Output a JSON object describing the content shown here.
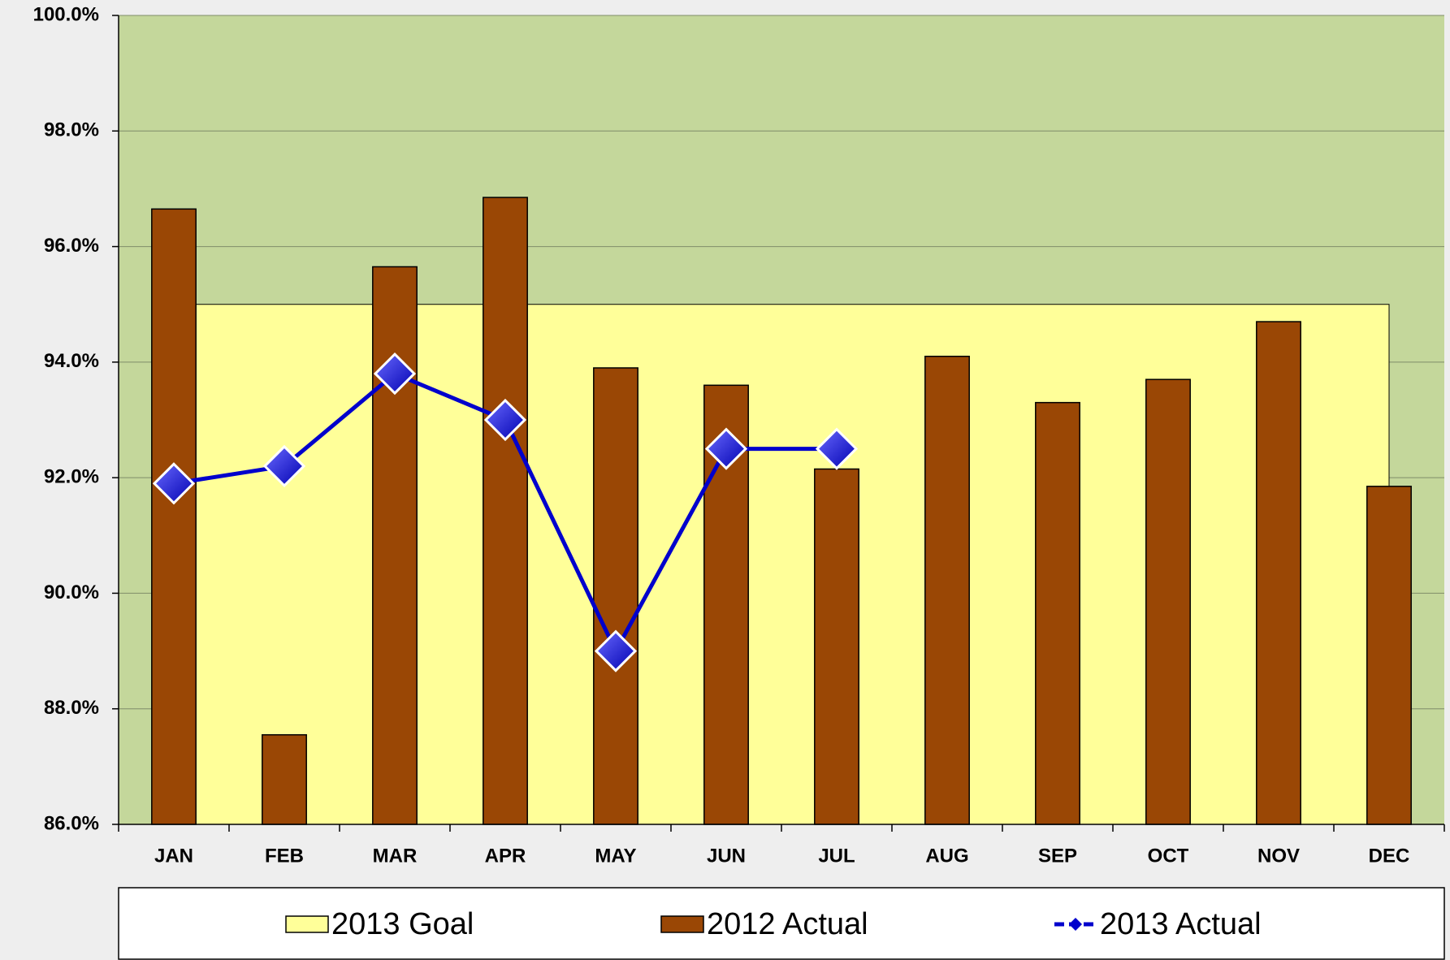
{
  "chart_data": {
    "type": "combo",
    "categories": [
      "JAN",
      "FEB",
      "MAR",
      "APR",
      "MAY",
      "JUN",
      "JUL",
      "AUG",
      "SEP",
      "OCT",
      "NOV",
      "DEC"
    ],
    "series": [
      {
        "name": "2013 Goal",
        "type": "area",
        "color": "#ffff99",
        "values": [
          95,
          95,
          95,
          95,
          95,
          95,
          95,
          95,
          95,
          95,
          95,
          95
        ]
      },
      {
        "name": "2012 Actual",
        "type": "bar",
        "color": "#9a4705",
        "values": [
          96.65,
          87.55,
          95.65,
          96.85,
          93.9,
          93.6,
          92.15,
          94.1,
          93.3,
          93.7,
          94.7,
          91.85
        ]
      },
      {
        "name": "2013 Actual",
        "type": "line",
        "color": "#0000cc",
        "values": [
          91.9,
          92.2,
          93.8,
          93.0,
          89.0,
          92.5,
          92.5,
          null,
          null,
          null,
          null,
          null
        ]
      }
    ],
    "ylim": [
      86,
      100
    ],
    "yticks": [
      {
        "value": 86,
        "label": "86.0%"
      },
      {
        "value": 88,
        "label": "88.0%"
      },
      {
        "value": 90,
        "label": "90.0%"
      },
      {
        "value": 92,
        "label": "92.0%"
      },
      {
        "value": 94,
        "label": "94.0%"
      },
      {
        "value": 96,
        "label": "96.0%"
      },
      {
        "value": 98,
        "label": "98.0%"
      },
      {
        "value": 100,
        "label": "100.0%"
      }
    ],
    "grid": true,
    "plot_background": "#c4d79b",
    "legend": "bottom"
  }
}
